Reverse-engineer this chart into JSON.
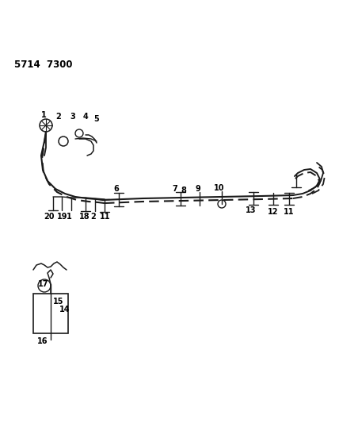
{
  "title": "5714 7300",
  "bg_color": "#ffffff",
  "line_color": "#1a1a1a",
  "text_color": "#000000",
  "fig_width": 4.28,
  "fig_height": 5.33,
  "dpi": 100
}
